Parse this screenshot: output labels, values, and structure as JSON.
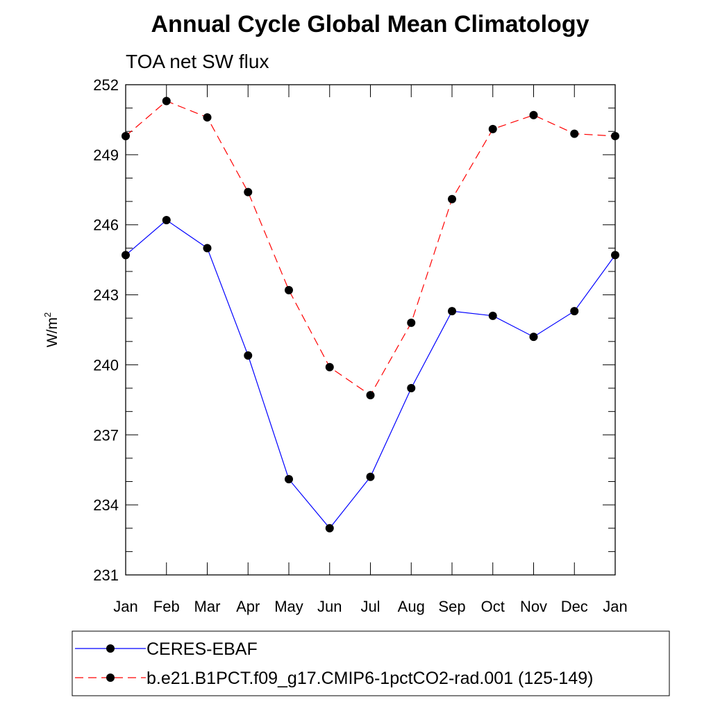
{
  "chart_data": {
    "type": "line",
    "title": "Annual Cycle Global Mean Climatology",
    "subtitle": "TOA net SW flux",
    "ylabel": "W/m",
    "ylabel_sup": "2",
    "categories": [
      "Jan",
      "Feb",
      "Mar",
      "Apr",
      "May",
      "Jun",
      "Jul",
      "Aug",
      "Sep",
      "Oct",
      "Nov",
      "Dec",
      "Jan"
    ],
    "ylim": [
      231,
      252
    ],
    "yticks": [
      231,
      234,
      237,
      240,
      243,
      246,
      249,
      252
    ],
    "grid": false,
    "legend_position": "bottom",
    "series": [
      {
        "name": "CERES-EBAF",
        "color": "#0000ff",
        "dash": "solid",
        "marker": "circle",
        "values": [
          244.7,
          246.2,
          245.0,
          240.4,
          235.1,
          233.0,
          235.2,
          239.0,
          242.3,
          242.1,
          241.2,
          242.3,
          244.7
        ]
      },
      {
        "name": "b.e21.B1PCT.f09_g17.CMIP6-1pctCO2-rad.001 (125-149)",
        "color": "#ff0000",
        "dash": "dashed",
        "marker": "circle",
        "values": [
          249.8,
          251.3,
          250.6,
          247.4,
          243.2,
          239.9,
          238.7,
          241.8,
          247.1,
          250.1,
          250.7,
          249.9,
          249.8
        ]
      }
    ]
  }
}
